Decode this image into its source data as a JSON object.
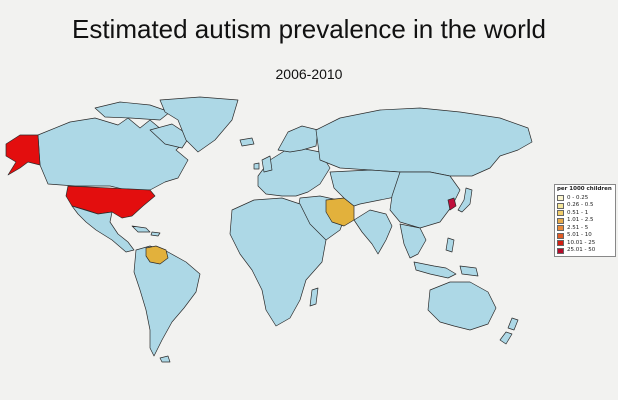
{
  "header": {
    "title": "Estimated autism prevalence in the world",
    "subtitle": "2006-2010"
  },
  "colors": {
    "background": "#f2f2f0",
    "ocean": "#f2f2f0",
    "land_default": "#add8e6",
    "border": "#2b2b2b"
  },
  "legend": {
    "title": "per 1000 children",
    "items": [
      {
        "label": "0 - 0.25",
        "color": "#fbf6d0"
      },
      {
        "label": "0.26 - 0.5",
        "color": "#f3e59a"
      },
      {
        "label": "0.51 - 1",
        "color": "#f1cd6a"
      },
      {
        "label": "1.01 - 2.5",
        "color": "#e8aa4a"
      },
      {
        "label": "2.51 - 5",
        "color": "#e98a3a"
      },
      {
        "label": "5.01 - 10",
        "color": "#e05a24"
      },
      {
        "label": "10.01 - 25",
        "color": "#d21e12"
      },
      {
        "label": "25.01 - 50",
        "color": "#b50a2a"
      }
    ]
  },
  "highlighted_regions": [
    {
      "name": "United States",
      "color": "#e30e0e"
    },
    {
      "name": "Alaska",
      "color": "#e30e0e"
    },
    {
      "name": "Venezuela",
      "color": "#e2b13c"
    },
    {
      "name": "Iran",
      "color": "#e2b13c"
    },
    {
      "name": "South Korea",
      "color": "#c0103c"
    }
  ]
}
